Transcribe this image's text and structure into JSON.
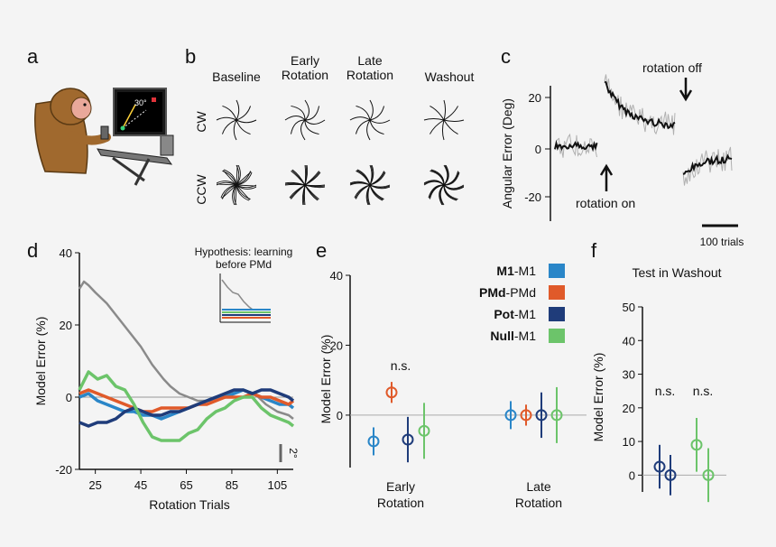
{
  "panels": {
    "a": {
      "label": "a",
      "angle_text": "30°"
    },
    "b": {
      "label": "b",
      "columns": [
        "Baseline",
        "Early\nRotation",
        "Late\nRotation",
        "Washout"
      ],
      "rows": [
        "CW",
        "CCW"
      ]
    },
    "c": {
      "label": "c",
      "ylabel": "Angular Error (Deg)",
      "yticks": [
        "20",
        "0",
        "-20"
      ],
      "annotations": {
        "rotation_on": "rotation on",
        "rotation_off": "rotation off"
      },
      "scalebar": "100 trials"
    },
    "d": {
      "label": "d",
      "ylabel": "Model Error (%)",
      "xlabel": "Rotation Trials",
      "yticks": [
        "40",
        "20",
        "0",
        "-20"
      ],
      "xticks": [
        "25",
        "45",
        "65",
        "85",
        "105"
      ],
      "inset_title": "Hypothesis: learning\nbefore PMd",
      "scalebar": "2°"
    },
    "e": {
      "label": "e",
      "ylabel": "Model Error (%)",
      "yticks": [
        "40",
        "20",
        "0"
      ],
      "groups": [
        "Early\nRotation",
        "Late\nRotation"
      ],
      "ns": "n.s.",
      "legend": [
        {
          "bold": "M1",
          "rest": "-M1",
          "color": "#2a86c8"
        },
        {
          "bold": "PMd",
          "rest": "-PMd",
          "color": "#e05a2a"
        },
        {
          "bold": "Pot",
          "rest": "-M1",
          "color": "#1f3c7a"
        },
        {
          "bold": "Null",
          "rest": "-M1",
          "color": "#6cc46a"
        }
      ]
    },
    "f": {
      "label": "f",
      "title": "Test in Washout",
      "ylabel": "Model Error (%)",
      "yticks": [
        "50",
        "40",
        "30",
        "20",
        "10",
        "0"
      ],
      "ns": [
        "n.s.",
        "n.s."
      ]
    }
  },
  "colors": {
    "m1": "#2a86c8",
    "pmd": "#e05a2a",
    "pot": "#1f3c7a",
    "null": "#6cc46a",
    "gray": "#8a8a8a"
  },
  "chart_data": [
    {
      "type": "line",
      "title": "d",
      "xlabel": "Rotation Trials",
      "ylabel": "Model Error (%)",
      "xlim": [
        18,
        112
      ],
      "ylim": [
        -20,
        40
      ],
      "series": [
        {
          "name": "Gray (hypothesis/mean)",
          "color": "#8a8a8a",
          "x": [
            18,
            20,
            22,
            25,
            30,
            35,
            40,
            45,
            50,
            55,
            58,
            62,
            66,
            70,
            75,
            80,
            85,
            90,
            95,
            100,
            105,
            110,
            112
          ],
          "y": [
            30,
            32,
            31,
            29,
            26,
            22,
            18,
            14,
            9,
            5,
            3,
            1,
            0,
            -1,
            -1,
            0,
            1,
            2,
            1,
            -2,
            -4,
            -5,
            -6
          ]
        },
        {
          "name": "M1-M1",
          "color": "#2a86c8",
          "x": [
            18,
            22,
            26,
            30,
            34,
            38,
            42,
            46,
            50,
            54,
            58,
            62,
            66,
            70,
            74,
            78,
            82,
            86,
            90,
            94,
            98,
            102,
            106,
            110,
            112
          ],
          "y": [
            0,
            1,
            -1,
            -2,
            -3,
            -4,
            -4,
            -5,
            -5,
            -6,
            -5,
            -4,
            -3,
            -2,
            -1,
            0,
            0,
            1,
            2,
            1,
            0,
            -1,
            -2,
            -2,
            -3
          ]
        },
        {
          "name": "PMd-PMd",
          "color": "#e05a2a",
          "x": [
            18,
            22,
            26,
            30,
            34,
            38,
            42,
            46,
            50,
            54,
            58,
            62,
            66,
            70,
            74,
            78,
            82,
            86,
            90,
            94,
            98,
            102,
            106,
            110,
            112
          ],
          "y": [
            1,
            2,
            1,
            0,
            -1,
            -2,
            -3,
            -4,
            -4,
            -3,
            -3,
            -3,
            -3,
            -2,
            -2,
            -1,
            0,
            0,
            0,
            1,
            0,
            0,
            -1,
            -2,
            -1
          ]
        },
        {
          "name": "Pot-M1",
          "color": "#1f3c7a",
          "x": [
            18,
            22,
            26,
            30,
            34,
            38,
            42,
            46,
            50,
            54,
            58,
            62,
            66,
            70,
            74,
            78,
            82,
            86,
            90,
            94,
            98,
            102,
            106,
            110,
            112
          ],
          "y": [
            -7,
            -8,
            -7,
            -7,
            -6,
            -4,
            -3,
            -4,
            -5,
            -5,
            -4,
            -4,
            -3,
            -2,
            -1,
            0,
            1,
            2,
            2,
            1,
            2,
            2,
            1,
            0,
            -1
          ]
        },
        {
          "name": "Null-M1",
          "color": "#6cc46a",
          "x": [
            18,
            22,
            26,
            30,
            34,
            38,
            42,
            46,
            50,
            54,
            58,
            62,
            66,
            70,
            74,
            78,
            82,
            86,
            90,
            94,
            98,
            102,
            106,
            110,
            112
          ],
          "y": [
            2,
            7,
            5,
            6,
            3,
            2,
            -2,
            -7,
            -11,
            -12,
            -12,
            -12,
            -10,
            -9,
            -6,
            -4,
            -3,
            -1,
            0,
            0,
            -3,
            -5,
            -6,
            -7,
            -8
          ]
        }
      ]
    },
    {
      "type": "scatter",
      "title": "e",
      "ylabel": "Model Error (%)",
      "ylim": [
        -15,
        40
      ],
      "categories": [
        "Early Rotation",
        "Late Rotation"
      ],
      "series": [
        {
          "name": "M1-M1",
          "color": "#2a86c8",
          "values": [
            -7.5,
            0
          ],
          "err": [
            4,
            4
          ]
        },
        {
          "name": "PMd-PMd",
          "color": "#e05a2a",
          "values": [
            6.5,
            0
          ],
          "err": [
            3,
            3
          ]
        },
        {
          "name": "Pot-M1",
          "color": "#1f3c7a",
          "values": [
            -7,
            0
          ],
          "err": [
            6.5,
            6.5
          ]
        },
        {
          "name": "Null-M1",
          "color": "#6cc46a",
          "values": [
            -4.5,
            0
          ],
          "err": [
            8,
            8
          ]
        }
      ]
    },
    {
      "type": "scatter",
      "title": "Test in Washout",
      "ylabel": "Model Error (%)",
      "ylim": [
        -5,
        50
      ],
      "series": [
        {
          "name": "Pot-M1",
          "color": "#1f3c7a",
          "values": [
            2.5,
            0
          ],
          "err": [
            6.5,
            6
          ]
        },
        {
          "name": "Null-M1",
          "color": "#6cc46a",
          "values": [
            9,
            0
          ],
          "err": [
            8,
            8
          ]
        }
      ]
    }
  ]
}
